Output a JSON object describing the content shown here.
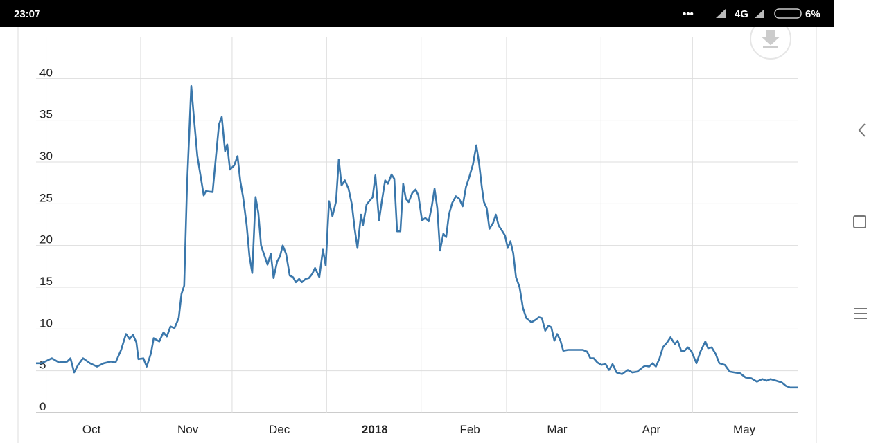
{
  "status_bar": {
    "time": "23:07",
    "network": "4G",
    "battery": "6%"
  },
  "chart_data": {
    "type": "line",
    "color": "#3a77ab",
    "grid": true,
    "x": [
      -3.3,
      -1.5,
      1.9,
      4.2,
      6.9,
      8,
      9.2,
      10.5,
      12.1,
      14.4,
      16.7,
      18.9,
      21.2,
      22.8,
      24.6,
      26.2,
      27.4,
      28.5,
      29.6,
      30.3,
      31.9,
      33,
      34.4,
      35.3,
      37.1,
      38.5,
      39.6,
      40.8,
      42.1,
      43.5,
      44.4,
      45.3,
      46.2,
      47.6,
      48.3,
      49.6,
      51.7,
      52.4,
      54.6,
      56.7,
      57.6,
      58.7,
      59.4,
      60.3,
      61.7,
      62.8,
      63.7,
      64.6,
      65.8,
      66.7,
      67.6,
      68.7,
      69.6,
      70.5,
      71.7,
      72.6,
      73.7,
      74.6,
      75.8,
      76.7,
      77.6,
      78.7,
      79.9,
      81,
      81.9,
      83,
      83.9,
      85.1,
      86.2,
      87.3,
      88.2,
      89.6,
      90.8,
      91.7,
      92.8,
      93.9,
      95.1,
      96,
      96.9,
      98,
      99.2,
      100.3,
      101.2,
      102.1,
      103.3,
      103.9,
      105.1,
      106,
      107.1,
      108,
      109.2,
      110.1,
      111.2,
      112.1,
      113.3,
      114.2,
      115.1,
      116.2,
      117.1,
      118,
      118.9,
      120.1,
      121.2,
      122.1,
      123.3,
      124.4,
      125.5,
      126.5,
      127.4,
      128.3,
      129.2,
      130.3,
      131.2,
      132.1,
      133.2,
      134.4,
      135.5,
      136.6,
      137.7,
      138.8,
      140,
      141.1,
      142,
      142.9,
      143.6,
      144.5,
      145.4,
      146.6,
      147.5,
      148.4,
      149.3,
      150.5,
      151.4,
      152.3,
      153.2,
      154.1,
      155.3,
      156.4,
      157.5,
      159.2,
      160.5,
      161.6,
      162.6,
      163.7,
      164.8,
      165.7,
      166.7,
      167.6,
      168.7,
      169.6,
      171.2,
      172.8,
      174.4,
      176,
      177.4,
      178.5,
      179.6,
      180.8,
      182.1,
      183.5,
      184.6,
      185.8,
      187.1,
      188.9,
      190.8,
      192.3,
      193.9,
      195.3,
      196.4,
      197.8,
      198.9,
      200,
      201.2,
      202.3,
      203.7,
      204.8,
      206.2,
      207.1,
      208.3,
      209.4,
      210.5,
      211.7,
      213.3,
      214.6,
      216.2,
      217.1,
      218.3,
      219.6,
      220.8,
      222.6,
      224.2,
      225.8,
      227.6,
      229.4,
      231.3,
      233.1,
      234.9,
      236.3,
      237.6,
      239.5,
      241.3,
      242.6,
      244,
      245.4,
      246.5
    ],
    "values": [
      5.9,
      5.9,
      6.5,
      6.0,
      6.1,
      6.5,
      4.8,
      5.7,
      6.5,
      5.9,
      5.5,
      5.9,
      6.1,
      6.0,
      7.5,
      9.4,
      8.8,
      9.3,
      8.4,
      6.4,
      6.5,
      5.5,
      7.1,
      8.9,
      8.5,
      9.6,
      9.1,
      10.3,
      10.1,
      11.3,
      14.2,
      15.2,
      27.0,
      39.1,
      36.1,
      30.7,
      26.0,
      26.5,
      26.4,
      34.5,
      35.4,
      31.3,
      32.1,
      29.1,
      29.6,
      30.7,
      27.7,
      25.8,
      22.4,
      18.7,
      16.7,
      25.8,
      23.9,
      20.0,
      18.7,
      17.7,
      19.0,
      16.1,
      18.1,
      18.7,
      20.0,
      19.0,
      16.4,
      16.2,
      15.6,
      16.0,
      15.6,
      16.0,
      16.1,
      16.6,
      17.3,
      16.2,
      19.5,
      17.6,
      25.3,
      23.5,
      25.3,
      30.3,
      27.2,
      27.8,
      26.8,
      24.9,
      22.0,
      19.7,
      23.7,
      22.4,
      24.9,
      25.3,
      25.8,
      28.4,
      23.0,
      25.3,
      27.8,
      27.4,
      28.5,
      28.0,
      21.7,
      21.7,
      27.4,
      25.6,
      25.2,
      26.3,
      26.7,
      26.0,
      23.0,
      23.3,
      22.9,
      24.7,
      26.8,
      24.5,
      19.4,
      21.4,
      21.0,
      23.7,
      25.1,
      25.9,
      25.6,
      24.7,
      27.0,
      28.2,
      29.7,
      32.0,
      29.9,
      27.0,
      25.2,
      24.5,
      22.0,
      22.7,
      23.7,
      22.4,
      21.9,
      21.2,
      19.7,
      20.5,
      19.1,
      16.2,
      15.0,
      12.5,
      11.3,
      10.8,
      11.1,
      11.4,
      11.3,
      9.8,
      10.4,
      10.2,
      8.6,
      9.4,
      8.6,
      7.4,
      7.5,
      7.5,
      7.5,
      7.5,
      7.3,
      6.5,
      6.5,
      6.0,
      5.7,
      5.8,
      5.1,
      5.8,
      4.8,
      4.6,
      5.1,
      4.8,
      4.9,
      5.3,
      5.6,
      5.5,
      5.9,
      5.5,
      6.5,
      7.8,
      8.4,
      9.0,
      8.2,
      8.6,
      7.4,
      7.4,
      7.8,
      7.3,
      5.9,
      7.3,
      8.5,
      7.7,
      7.8,
      7.0,
      5.9,
      5.7,
      4.9,
      4.8,
      4.7,
      4.2,
      4.1,
      3.7,
      4.0,
      3.8,
      4.0,
      3.8,
      3.6,
      3.2,
      3.0,
      3.0,
      3.0
    ],
    "xlim": [
      -3.3,
      246.7
    ],
    "xgrid": [
      0,
      31,
      61,
      92,
      123,
      151,
      182,
      212
    ],
    "xticks": [
      {
        "value": 14.9,
        "label": "Oct"
      },
      {
        "value": 46.5,
        "label": "Nov"
      },
      {
        "value": 76.5,
        "label": "Dec"
      },
      {
        "value": 107.8,
        "label": "2018",
        "bold": true
      },
      {
        "value": 139,
        "label": "Feb"
      },
      {
        "value": 167.6,
        "label": "Mar"
      },
      {
        "value": 198.5,
        "label": "Apr"
      },
      {
        "value": 229,
        "label": "May"
      }
    ],
    "ylim": [
      0,
      45
    ],
    "yticks": [
      0,
      5,
      10,
      15,
      20,
      25,
      30,
      35,
      40
    ]
  }
}
